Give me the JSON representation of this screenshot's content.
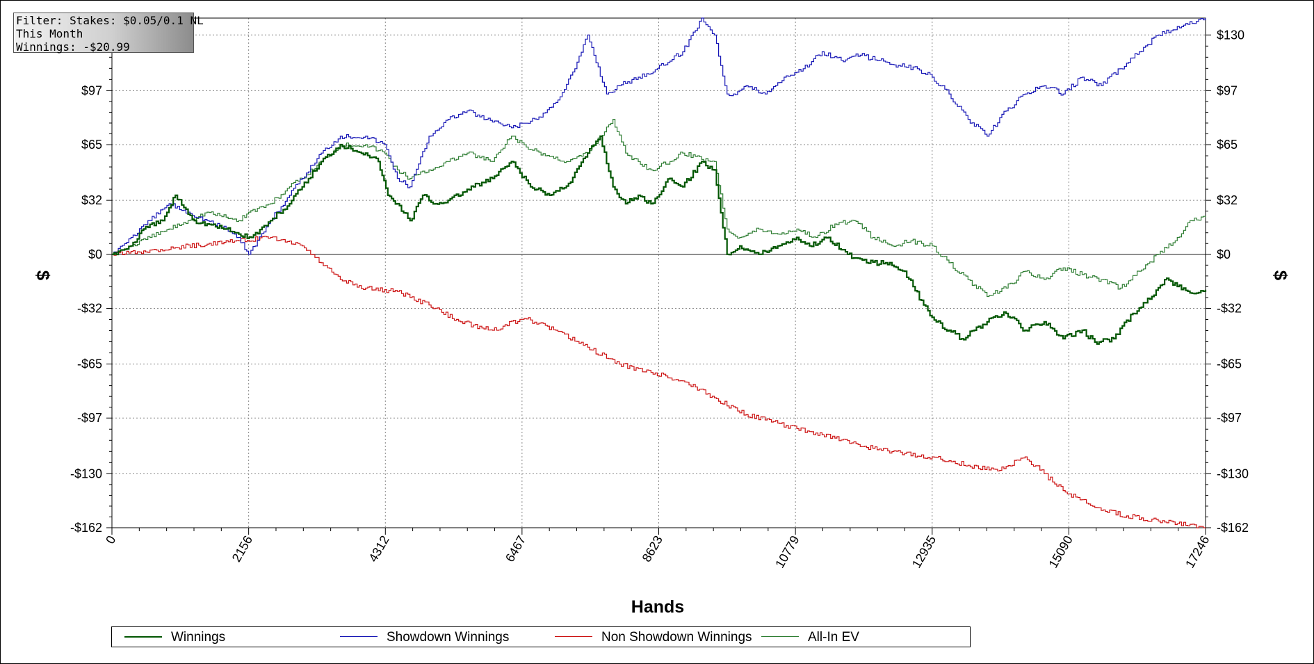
{
  "info_box": {
    "line1": "Filter: Stakes: $0.05/0.1 NL",
    "line2": "This Month",
    "line3": "Winnings: -$20.99"
  },
  "chart_data": {
    "type": "line",
    "xlabel": "Hands",
    "ylabel": "$",
    "xlim": [
      0,
      17246
    ],
    "ylim": [
      -162,
      140
    ],
    "x_ticks": [
      0,
      2156,
      4312,
      6467,
      8623,
      10779,
      12935,
      15090,
      17246
    ],
    "y_ticks": [
      -162,
      -130,
      -97,
      -65,
      -32,
      0,
      32,
      65,
      97,
      130
    ],
    "y_tick_labels": [
      "-$162",
      "-$130",
      "-$97",
      "-$65",
      "-$32",
      "$0",
      "$32",
      "$65",
      "$97",
      "$130"
    ],
    "right_y_tick_labels": [
      "-$162",
      "-$130",
      "-$97",
      "-$65",
      "-$32",
      "$0",
      "$32",
      "$65",
      "$97",
      "$130"
    ],
    "grid": true,
    "zero_line": true,
    "legend_position": "bottom",
    "colors": {
      "winnings": "#005500",
      "showdown": "#1515b5",
      "non_showdown": "#cc1111",
      "allin_ev": "#2e7d32"
    },
    "series": [
      {
        "name": "Winnings",
        "key": "winnings",
        "x": [
          0,
          300,
          500,
          800,
          1000,
          1300,
          1500,
          1800,
          2000,
          2200,
          2500,
          2800,
          3000,
          3300,
          3600,
          4000,
          4200,
          4350,
          4500,
          4700,
          4900,
          5100,
          5300,
          5700,
          6000,
          6300,
          6600,
          6900,
          7200,
          7500,
          7700,
          7900,
          8100,
          8300,
          8500,
          8800,
          9000,
          9300,
          9500,
          9700,
          9900,
          10200,
          10500,
          10800,
          11000,
          11300,
          11600,
          11900,
          12200,
          12500,
          12800,
          13000,
          13200,
          13400,
          13600,
          13800,
          14100,
          14400,
          14700,
          15000,
          15300,
          15500,
          15800,
          16100,
          16400,
          16600,
          16900,
          17100,
          17246
        ],
        "y": [
          0,
          5,
          15,
          20,
          35,
          20,
          18,
          15,
          12,
          10,
          20,
          30,
          40,
          55,
          65,
          60,
          55,
          35,
          30,
          20,
          35,
          30,
          32,
          40,
          45,
          55,
          40,
          35,
          42,
          60,
          70,
          40,
          30,
          35,
          30,
          45,
          40,
          55,
          50,
          0,
          5,
          0,
          5,
          10,
          5,
          10,
          0,
          -5,
          -5,
          -10,
          -30,
          -40,
          -45,
          -50,
          -45,
          -40,
          -35,
          -45,
          -40,
          -50,
          -45,
          -52,
          -50,
          -35,
          -25,
          -15,
          -20,
          -23,
          -21
        ]
      },
      {
        "name": "Showdown Winnings",
        "key": "showdown",
        "x": [
          0,
          300,
          600,
          900,
          1200,
          1500,
          1800,
          2000,
          2156,
          2500,
          2800,
          3000,
          3300,
          3600,
          4000,
          4300,
          4500,
          4700,
          5000,
          5300,
          5600,
          5900,
          6300,
          6700,
          7000,
          7300,
          7500,
          7800,
          8000,
          8300,
          8600,
          9000,
          9300,
          9500,
          9700,
          9800,
          10000,
          10300,
          10600,
          10900,
          11200,
          11500,
          11800,
          12100,
          12400,
          12700,
          12935,
          13200,
          13500,
          13800,
          14100,
          14400,
          14700,
          15000,
          15300,
          15600,
          15900,
          16200,
          16500,
          16800,
          17100,
          17246
        ],
        "y": [
          0,
          10,
          20,
          30,
          25,
          20,
          15,
          10,
          0,
          20,
          35,
          45,
          60,
          70,
          70,
          65,
          45,
          40,
          70,
          80,
          85,
          80,
          75,
          80,
          90,
          110,
          130,
          95,
          100,
          105,
          110,
          120,
          140,
          130,
          95,
          95,
          100,
          95,
          105,
          110,
          120,
          115,
          118,
          115,
          112,
          110,
          105,
          95,
          80,
          70,
          85,
          95,
          100,
          95,
          105,
          100,
          110,
          120,
          130,
          135,
          138,
          140
        ]
      },
      {
        "name": "Non Showdown Winnings",
        "key": "non_showdown",
        "x": [
          0,
          500,
          1000,
          1500,
          2000,
          2500,
          3000,
          3300,
          3600,
          4000,
          4500,
          5000,
          5500,
          6000,
          6500,
          7000,
          7500,
          8000,
          8500,
          9000,
          9500,
          10000,
          10500,
          11000,
          11500,
          12000,
          12500,
          12935,
          13500,
          14000,
          14400,
          14700,
          15000,
          15500,
          16000,
          16500,
          17000,
          17246
        ],
        "y": [
          0,
          2,
          4,
          6,
          8,
          10,
          5,
          -5,
          -15,
          -20,
          -22,
          -30,
          -40,
          -45,
          -38,
          -45,
          -55,
          -65,
          -70,
          -75,
          -85,
          -95,
          -100,
          -105,
          -110,
          -115,
          -118,
          -120,
          -125,
          -128,
          -120,
          -130,
          -140,
          -150,
          -155,
          -158,
          -160,
          -162
        ]
      },
      {
        "name": "All-In EV",
        "key": "allin_ev",
        "x": [
          0,
          300,
          600,
          900,
          1200,
          1500,
          1800,
          2000,
          2156,
          2500,
          2800,
          3000,
          3300,
          3600,
          4000,
          4300,
          4500,
          4700,
          5000,
          5300,
          5600,
          6000,
          6300,
          6600,
          6900,
          7200,
          7500,
          7700,
          7900,
          8100,
          8300,
          8500,
          8800,
          9000,
          9200,
          9500,
          9700,
          9900,
          10200,
          10500,
          10800,
          11100,
          11400,
          11700,
          12000,
          12300,
          12600,
          12935,
          13200,
          13500,
          13800,
          14100,
          14400,
          14700,
          15000,
          15300,
          15600,
          15900,
          16200,
          16500,
          16800,
          17000,
          17246
        ],
        "y": [
          0,
          5,
          10,
          15,
          20,
          25,
          22,
          20,
          25,
          30,
          40,
          45,
          55,
          65,
          65,
          60,
          50,
          45,
          50,
          55,
          60,
          55,
          70,
          62,
          58,
          55,
          60,
          70,
          80,
          60,
          55,
          50,
          55,
          60,
          58,
          55,
          15,
          10,
          15,
          12,
          15,
          10,
          18,
          20,
          10,
          5,
          8,
          5,
          -5,
          -15,
          -25,
          -20,
          -10,
          -15,
          -8,
          -12,
          -15,
          -20,
          -10,
          0,
          10,
          20,
          22
        ]
      }
    ]
  }
}
